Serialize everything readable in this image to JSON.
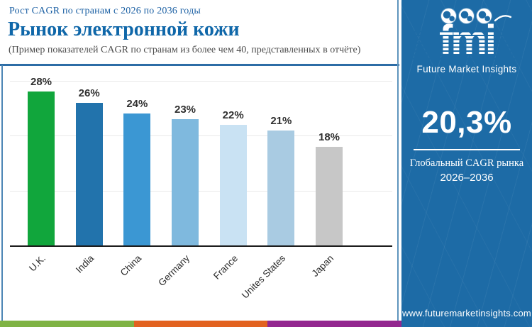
{
  "header": {
    "kicker": "Рост CAGR по странам с 2026 по 2036 годы",
    "title": "Рынок электронной кожи",
    "subtitle": "(Пример показателей CAGR по странам из более чем 40, представленных в отчёте)"
  },
  "chart_data": {
    "type": "bar",
    "categories": [
      "U.K.",
      "India",
      "China",
      "Germany",
      "France",
      "Unites States",
      "Japan"
    ],
    "values": [
      28,
      26,
      24,
      23,
      22,
      21,
      18
    ],
    "value_labels": [
      "28%",
      "26%",
      "24%",
      "23%",
      "22%",
      "21%",
      "18%"
    ],
    "bar_colors": [
      "#11a63c",
      "#2273ac",
      "#3b97d3",
      "#7fb9de",
      "#c9e2f3",
      "#a9cbe2",
      "#c7c7c7"
    ],
    "title": "Рынок электронной кожи",
    "xlabel": "",
    "ylabel": "",
    "ylim": [
      0,
      30
    ],
    "gridlines_pct": [
      10,
      20,
      30
    ],
    "grid": true,
    "legend": "none"
  },
  "sidebar": {
    "logo_text": "fmi",
    "logo_tagline": "Future Market Insights",
    "stat_value": "20,3%",
    "stat_label_line1": "Глобальный CAGR рынка",
    "stat_label_line2": "2026–2036",
    "website": "www.futuremarketinsights.com",
    "bg_color": "#1d6ba6"
  },
  "footer_stripe": {
    "colors": [
      "#7fb344",
      "#e2621f",
      "#93278f"
    ]
  },
  "colors": {
    "kicker_blue": "#1a5fa3",
    "title_blue": "#0f67a9",
    "subtitle_gray": "#4c4c4c",
    "divider_blue": "#2d6da6",
    "axis_dark": "#1b1b1b",
    "gridline_gray": "#e9e9e9"
  }
}
